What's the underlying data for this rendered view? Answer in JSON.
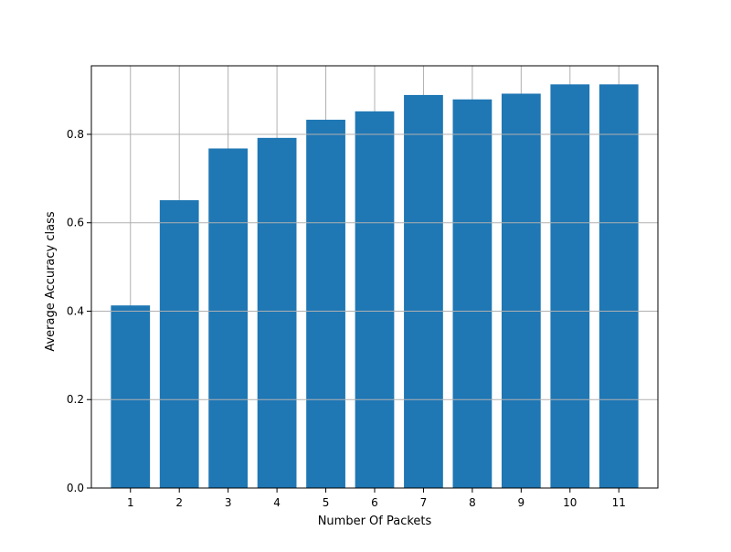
{
  "chart_data": {
    "type": "bar",
    "title": "",
    "xlabel": "Number Of Packets",
    "ylabel": "Average Accuracy class",
    "categories": [
      "1",
      "2",
      "3",
      "4",
      "5",
      "6",
      "7",
      "8",
      "9",
      "10",
      "11"
    ],
    "values": [
      0.413,
      0.651,
      0.768,
      0.792,
      0.833,
      0.852,
      0.889,
      0.879,
      0.892,
      0.913,
      0.913
    ],
    "ylim": [
      0,
      0.955
    ],
    "yticks": [
      "0.0",
      "0.2",
      "0.4",
      "0.6",
      "0.8"
    ],
    "ytick_values": [
      0,
      0.2,
      0.4,
      0.6,
      0.8
    ],
    "grid": true,
    "bar_color": "#1f77b4",
    "grid_color": "#b0b0b0"
  }
}
